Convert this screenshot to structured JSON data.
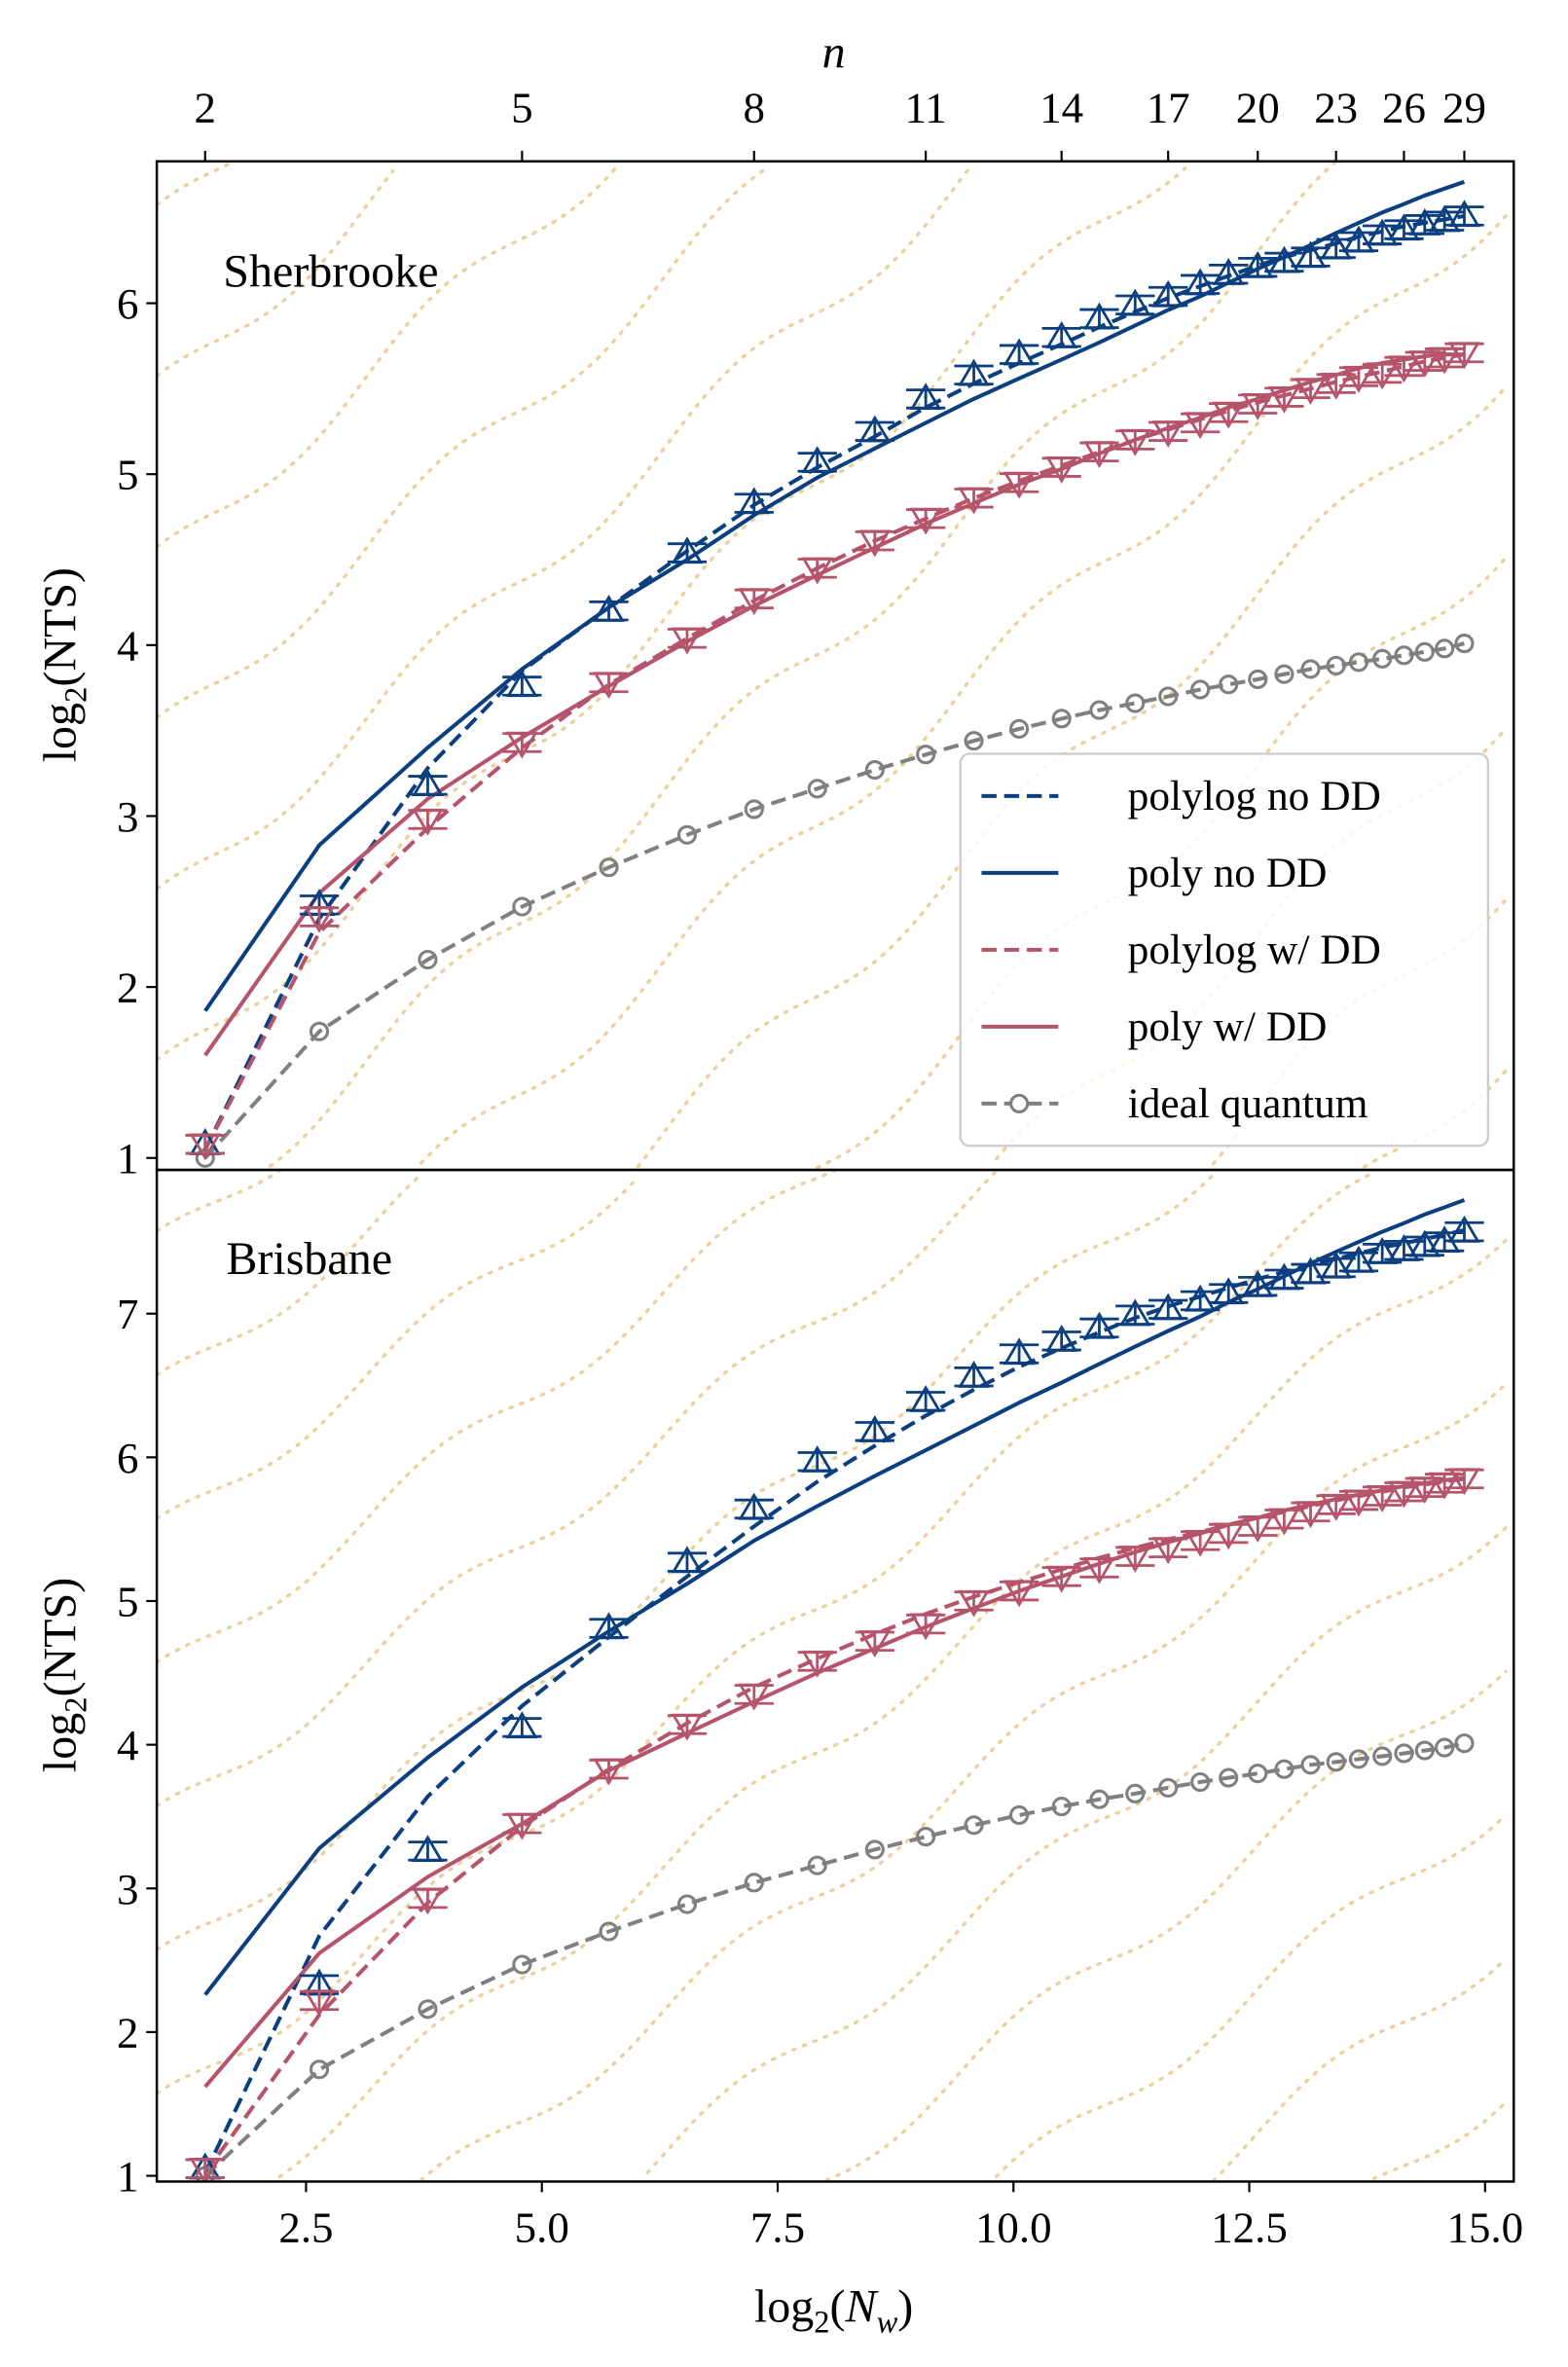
{
  "chart_data": [
    {
      "type": "line",
      "panel_label": "Sherbrooke",
      "xlabel": "log2(Nw)",
      "ylabel": "log2(NTS)",
      "top_xlabel": "n",
      "top_ticks": {
        "n": [
          2,
          5,
          8,
          11,
          14,
          17,
          20,
          23,
          26,
          29
        ],
        "x": [
          1.43,
          4.79,
          7.25,
          9.07,
          10.51,
          11.64,
          12.59,
          13.42,
          14.14,
          14.78
        ]
      },
      "xlim": [
        0.92,
        15.3
      ],
      "ylim": [
        0.93,
        6.83
      ],
      "yticks": [
        1,
        2,
        3,
        4,
        5,
        6
      ],
      "x": [
        1.43,
        2.64,
        3.79,
        4.79,
        5.71,
        6.54,
        7.25,
        7.92,
        8.53,
        9.07,
        9.58,
        10.06,
        10.51,
        10.91,
        11.29,
        11.64,
        11.98,
        12.28,
        12.59,
        12.87,
        13.15,
        13.42,
        13.66,
        13.91,
        14.14,
        14.36,
        14.57,
        14.78
      ],
      "series": [
        {
          "name": "polylog no DD",
          "style": "dashed",
          "color": "#0b3f80",
          "values": [
            1.05,
            2.4,
            3.28,
            3.85,
            4.22,
            4.55,
            4.82,
            5.04,
            5.22,
            5.39,
            5.53,
            5.65,
            5.76,
            5.86,
            5.95,
            6.03,
            6.1,
            6.16,
            6.22,
            6.27,
            6.31,
            6.35,
            6.39,
            6.42,
            6.45,
            6.47,
            6.49,
            6.51
          ]
        },
        {
          "name": "poly no DD",
          "style": "solid",
          "color": "#0b3f80",
          "values": [
            1.86,
            2.83,
            3.4,
            3.86,
            4.22,
            4.5,
            4.76,
            4.98,
            5.15,
            5.3,
            5.44,
            5.56,
            5.67,
            5.77,
            5.87,
            5.96,
            6.04,
            6.12,
            6.2,
            6.27,
            6.34,
            6.41,
            6.47,
            6.53,
            6.58,
            6.63,
            6.67,
            6.71
          ]
        },
        {
          "name": "polylog w/ DD",
          "style": "dashed",
          "color": "#b5546a",
          "values": [
            1.05,
            2.32,
            2.93,
            3.4,
            3.77,
            4.04,
            4.26,
            4.45,
            4.61,
            4.74,
            4.86,
            4.96,
            5.05,
            5.13,
            5.2,
            5.26,
            5.32,
            5.37,
            5.42,
            5.46,
            5.5,
            5.54,
            5.57,
            5.6,
            5.63,
            5.66,
            5.68,
            5.7
          ]
        },
        {
          "name": "poly w/ DD",
          "style": "solid",
          "color": "#b5546a",
          "values": [
            1.6,
            2.55,
            3.1,
            3.46,
            3.76,
            4.02,
            4.23,
            4.41,
            4.57,
            4.71,
            4.83,
            4.94,
            5.03,
            5.12,
            5.2,
            5.27,
            5.33,
            5.39,
            5.44,
            5.49,
            5.54,
            5.58,
            5.62,
            5.65,
            5.67,
            5.69,
            5.7,
            5.7
          ]
        },
        {
          "name": "ideal quantum",
          "style": "dashed-circle",
          "color": "#808080",
          "values": [
            1.0,
            1.74,
            2.16,
            2.47,
            2.7,
            2.89,
            3.04,
            3.16,
            3.27,
            3.36,
            3.44,
            3.51,
            3.57,
            3.62,
            3.66,
            3.7,
            3.74,
            3.77,
            3.8,
            3.83,
            3.86,
            3.88,
            3.9,
            3.92,
            3.94,
            3.96,
            3.98,
            4.01
          ]
        }
      ],
      "markers": [
        {
          "marker": "triangle-up",
          "color": "#0b3f80",
          "values": [
            1.08,
            2.48,
            3.18,
            3.76,
            4.2,
            4.54,
            4.83,
            5.07,
            5.25,
            5.44,
            5.58,
            5.7,
            5.8,
            5.91,
            5.99,
            6.04,
            6.11,
            6.17,
            6.21,
            6.24,
            6.27,
            6.32,
            6.36,
            6.4,
            6.43,
            6.46,
            6.48,
            6.51
          ]
        },
        {
          "marker": "triangle-down",
          "color": "#b5546a",
          "values": [
            1.08,
            2.41,
            2.98,
            3.43,
            3.78,
            4.04,
            4.27,
            4.45,
            4.61,
            4.74,
            4.86,
            4.95,
            5.04,
            5.13,
            5.2,
            5.25,
            5.3,
            5.36,
            5.41,
            5.45,
            5.5,
            5.53,
            5.57,
            5.59,
            5.63,
            5.66,
            5.68,
            5.71
          ]
        }
      ],
      "legend": "lower-right",
      "grid": false
    },
    {
      "type": "line",
      "panel_label": "Brisbane",
      "xlabel": "log2(Nw)",
      "ylabel": "log2(NTS)",
      "xlim": [
        0.92,
        15.3
      ],
      "ylim": [
        0.96,
        8.0
      ],
      "xticks": [
        2.5,
        5.0,
        7.5,
        10.0,
        12.5,
        15.0
      ],
      "xtick_labels": [
        "2.5",
        "5.0",
        "7.5",
        "10.0",
        "12.5",
        "15.0"
      ],
      "yticks": [
        1,
        2,
        3,
        4,
        5,
        6,
        7
      ],
      "x": [
        1.43,
        2.64,
        3.79,
        4.79,
        5.71,
        6.54,
        7.25,
        7.92,
        8.53,
        9.07,
        9.58,
        10.06,
        10.51,
        10.91,
        11.29,
        11.64,
        11.98,
        12.28,
        12.59,
        12.87,
        13.15,
        13.42,
        13.66,
        13.91,
        14.14,
        14.36,
        14.57,
        14.78
      ],
      "series": [
        {
          "name": "polylog no DD",
          "style": "dashed",
          "color": "#0b3f80",
          "values": [
            1.02,
            2.67,
            3.64,
            4.27,
            4.75,
            5.17,
            5.52,
            5.83,
            6.08,
            6.29,
            6.47,
            6.63,
            6.76,
            6.87,
            6.97,
            7.05,
            7.12,
            7.18,
            7.24,
            7.29,
            7.34,
            7.38,
            7.42,
            7.46,
            7.49,
            7.52,
            7.55,
            7.58
          ]
        },
        {
          "name": "poly no DD",
          "style": "solid",
          "color": "#0b3f80",
          "values": [
            2.26,
            3.28,
            3.91,
            4.4,
            4.79,
            5.12,
            5.42,
            5.66,
            5.87,
            6.05,
            6.22,
            6.38,
            6.52,
            6.65,
            6.77,
            6.88,
            6.98,
            7.08,
            7.17,
            7.26,
            7.35,
            7.43,
            7.5,
            7.57,
            7.63,
            7.69,
            7.74,
            7.79
          ]
        },
        {
          "name": "polylog w/ DD",
          "style": "dashed",
          "color": "#b5546a",
          "values": [
            1.02,
            2.12,
            2.9,
            3.43,
            3.83,
            4.15,
            4.4,
            4.6,
            4.77,
            4.91,
            5.03,
            5.13,
            5.22,
            5.3,
            5.37,
            5.43,
            5.48,
            5.53,
            5.58,
            5.62,
            5.66,
            5.7,
            5.73,
            5.76,
            5.79,
            5.81,
            5.83,
            5.85
          ]
        },
        {
          "name": "poly w/ DD",
          "style": "solid",
          "color": "#b5546a",
          "values": [
            1.62,
            2.55,
            3.08,
            3.45,
            3.82,
            4.08,
            4.3,
            4.5,
            4.67,
            4.82,
            4.95,
            5.07,
            5.17,
            5.26,
            5.34,
            5.41,
            5.47,
            5.53,
            5.58,
            5.63,
            5.67,
            5.71,
            5.74,
            5.77,
            5.8,
            5.82,
            5.84,
            5.86
          ]
        },
        {
          "name": "ideal quantum",
          "style": "dashed-circle",
          "color": "#808080",
          "values": [
            1.0,
            1.74,
            2.16,
            2.47,
            2.7,
            2.89,
            3.04,
            3.16,
            3.27,
            3.36,
            3.44,
            3.51,
            3.57,
            3.62,
            3.66,
            3.7,
            3.74,
            3.77,
            3.8,
            3.83,
            3.86,
            3.88,
            3.9,
            3.92,
            3.94,
            3.96,
            3.98,
            4.01
          ]
        }
      ],
      "markers": [
        {
          "marker": "triangle-up",
          "color": "#0b3f80",
          "values": [
            1.05,
            2.33,
            3.26,
            4.12,
            4.81,
            5.27,
            5.64,
            5.97,
            6.18,
            6.39,
            6.56,
            6.72,
            6.81,
            6.9,
            6.99,
            7.03,
            7.09,
            7.14,
            7.19,
            7.24,
            7.28,
            7.32,
            7.36,
            7.42,
            7.44,
            7.47,
            7.5,
            7.57
          ]
        },
        {
          "marker": "triangle-down",
          "color": "#b5546a",
          "values": [
            1.05,
            2.22,
            2.93,
            3.45,
            3.83,
            4.14,
            4.35,
            4.58,
            4.72,
            4.84,
            5.0,
            5.07,
            5.17,
            5.23,
            5.31,
            5.37,
            5.42,
            5.47,
            5.52,
            5.57,
            5.62,
            5.67,
            5.7,
            5.73,
            5.76,
            5.79,
            5.82,
            5.85
          ]
        }
      ],
      "grid": false
    }
  ],
  "contour_color": "#e8c98c"
}
